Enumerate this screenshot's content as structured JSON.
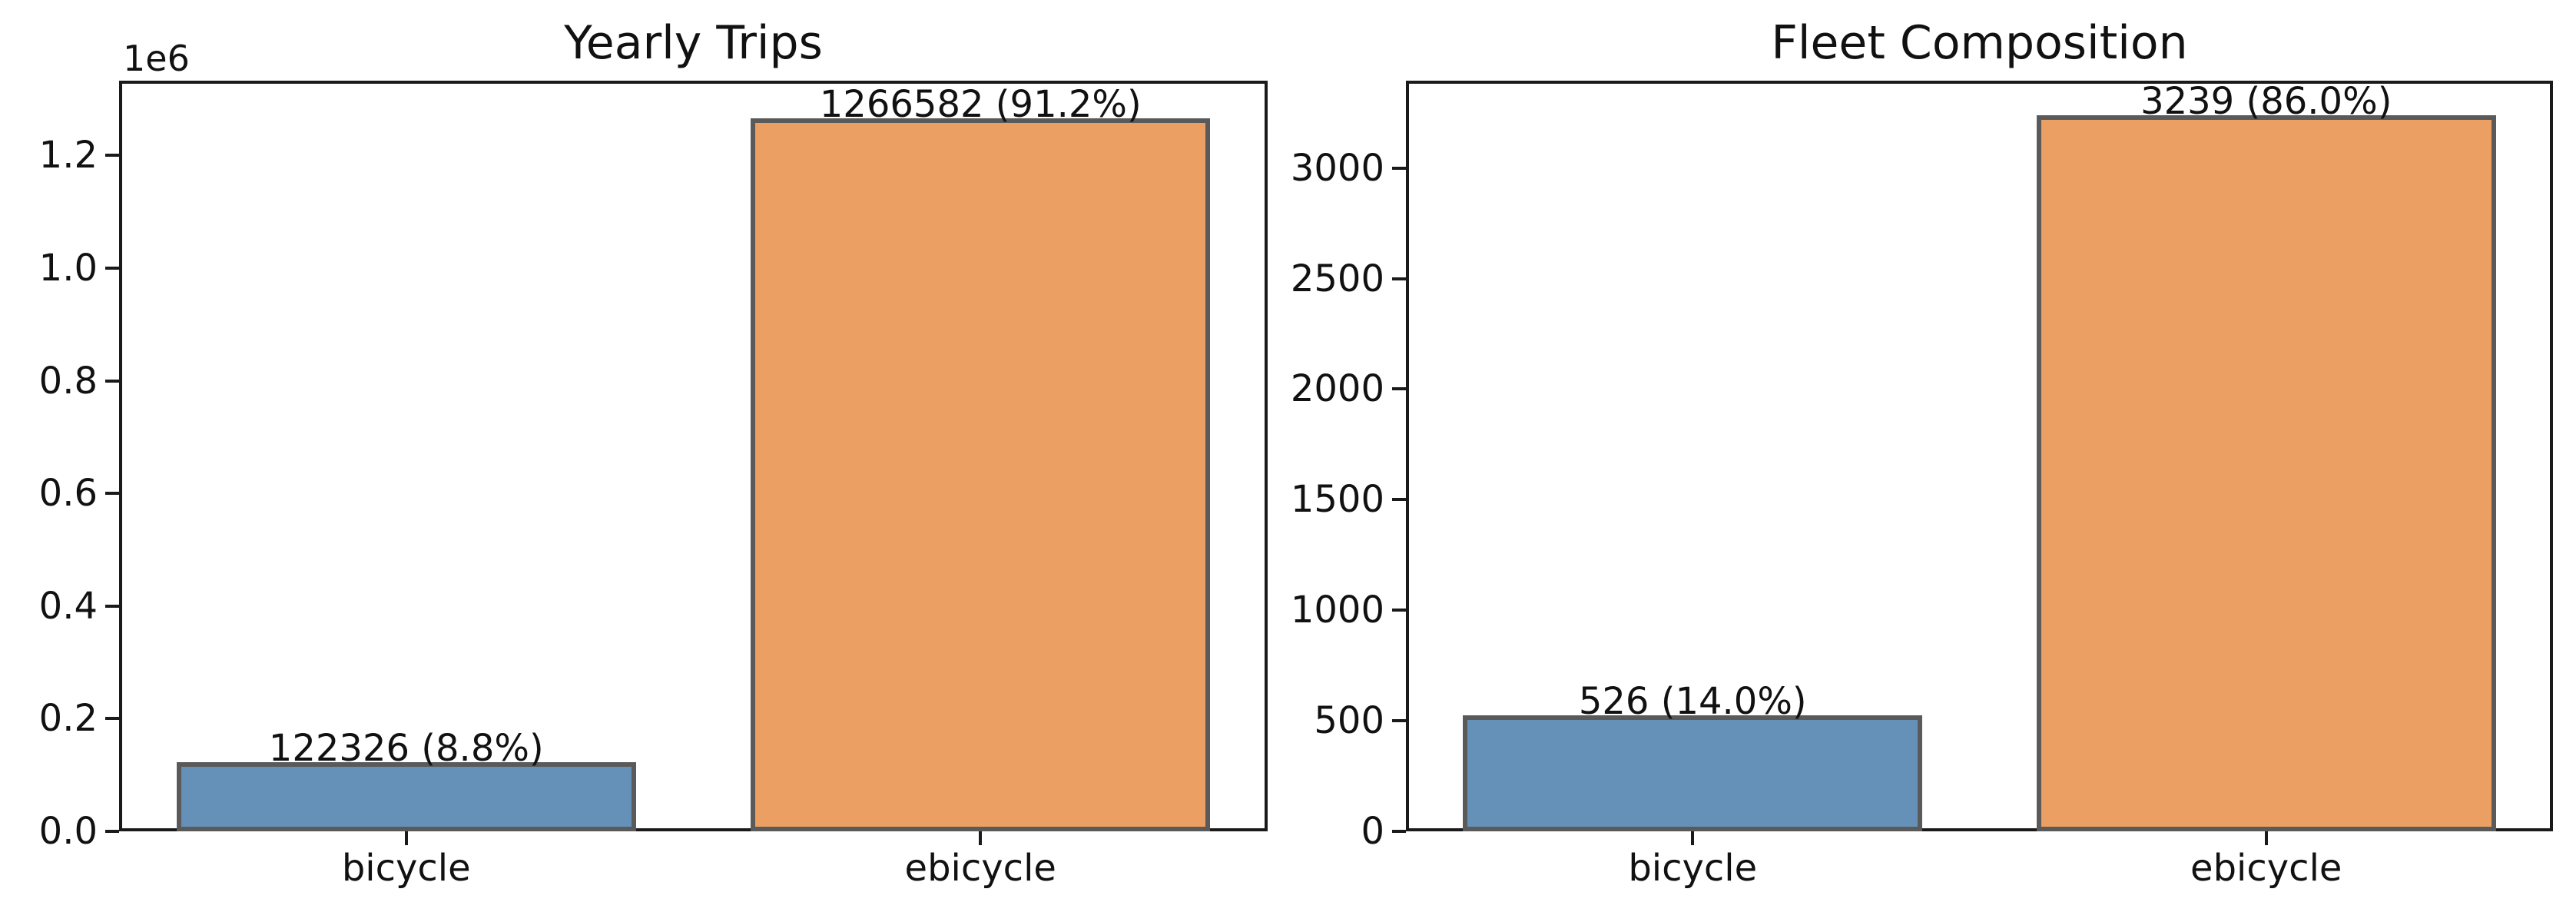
{
  "figure": {
    "background": "#ffffff",
    "text_color": "#111111"
  },
  "chart_data": [
    {
      "type": "bar",
      "title": "Yearly Trips",
      "offset_text": "1e6",
      "categories": [
        "bicycle",
        "ebicycle"
      ],
      "values": [
        122326,
        1266582
      ],
      "bar_labels": [
        "122326 (8.8%)",
        "1266582 (91.2%)"
      ],
      "percentages": [
        8.8,
        91.2
      ],
      "xlabel": "",
      "ylabel": "",
      "ylim": [
        0,
        1333000
      ],
      "yticks": [
        0,
        200000,
        400000,
        600000,
        800000,
        1000000,
        1200000
      ],
      "ytick_labels": [
        "0.0",
        "0.2",
        "0.4",
        "0.6",
        "0.8",
        "1.0",
        "1.2"
      ],
      "bar_colors": [
        "#6591b8",
        "#ec9f62"
      ],
      "bar_edge_color": "#5a5a5a",
      "grid": false,
      "legend_position": "none"
    },
    {
      "type": "bar",
      "title": "Fleet Composition",
      "offset_text": "",
      "categories": [
        "bicycle",
        "ebicycle"
      ],
      "values": [
        526,
        3239
      ],
      "bar_labels": [
        "526 (14.0%)",
        "3239 (86.0%)"
      ],
      "percentages": [
        14.0,
        86.0
      ],
      "xlabel": "",
      "ylabel": "",
      "ylim": [
        0,
        3395
      ],
      "yticks": [
        0,
        500,
        1000,
        1500,
        2000,
        2500,
        3000
      ],
      "ytick_labels": [
        "0",
        "500",
        "1000",
        "1500",
        "2000",
        "2500",
        "3000"
      ],
      "bar_colors": [
        "#6591b8",
        "#ec9f62"
      ],
      "bar_edge_color": "#5a5a5a",
      "grid": false,
      "legend_position": "none"
    }
  ]
}
